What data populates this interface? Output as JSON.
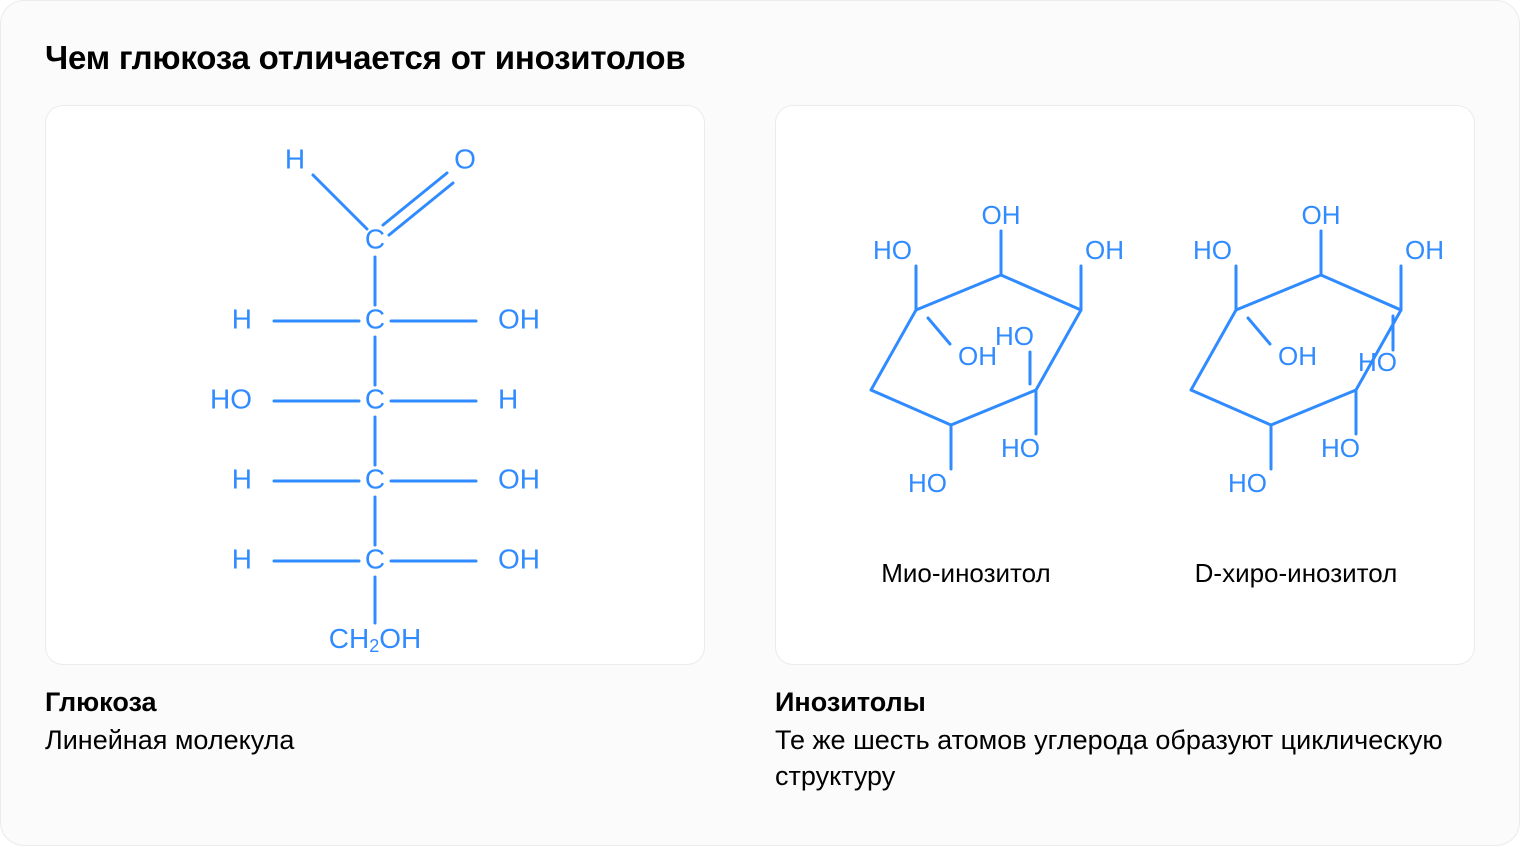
{
  "title": "Чем глюкоза отличается от инозитолов",
  "colors": {
    "blue": "#2f8bff",
    "panel_bg": "#ffffff",
    "panel_border": "#ebebeb",
    "outer_bg": "#fbfbfb",
    "text": "#000000"
  },
  "stroke_width": 3,
  "glucose": {
    "type": "linear-molecule",
    "atom_font_size": 28,
    "sub_font_size": 18,
    "main_chain": [
      "C",
      "C",
      "C",
      "C",
      "C"
    ],
    "top": {
      "left": "H",
      "right": "O",
      "double_bond": true
    },
    "rows": [
      {
        "left": "H",
        "right": "OH"
      },
      {
        "left": "HO",
        "right": "H"
      },
      {
        "left": "H",
        "right": "OH"
      },
      {
        "left": "H",
        "right": "OH"
      }
    ],
    "bottom": "CH₂OH",
    "caption_title": "Глюкоза",
    "caption_body": "Линейная молекула"
  },
  "inositols": {
    "type": "cyclic-molecules",
    "atom_font_size": 26,
    "panels": [
      {
        "label": "Мио-инозитол",
        "chair_flip": false,
        "oh": {
          "top": "OH",
          "top_left": "HO",
          "top_right": "OH",
          "mid_left": "OH",
          "mid_right": "HO",
          "bottom": "HO"
        }
      },
      {
        "label": "D-хиро-инозитол",
        "chair_flip": true,
        "oh": {
          "top": "OH",
          "top_left": "HO",
          "top_right": "OH",
          "mid_left": "OH",
          "mid_right": "HO",
          "bottom": "HO"
        }
      }
    ],
    "caption_title": "Инозитолы",
    "caption_body": "Те же шесть атомов углерода образуют циклическую структуру"
  }
}
